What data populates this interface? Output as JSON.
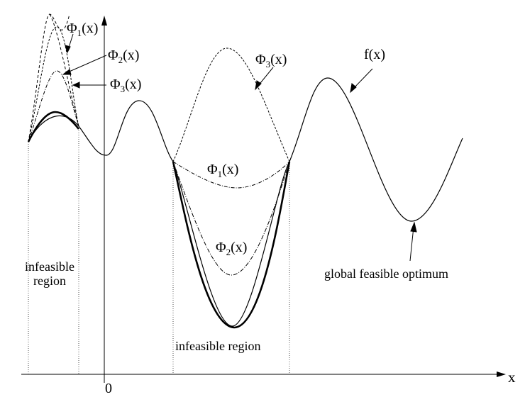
{
  "labels": {
    "phi_main": "Φ",
    "sub_1": "1",
    "sub_2": "2",
    "sub_3": "3",
    "arg": "(x)",
    "f": "f(x)",
    "x_axis": "x",
    "origin": "0",
    "infeasible_left_line1": "infeasible",
    "infeasible_left_line2": "region",
    "infeasible_center": "infeasible region",
    "optimum": "global feasible optimum"
  },
  "colors": {
    "ink": "#000000",
    "guide": "#444444"
  }
}
